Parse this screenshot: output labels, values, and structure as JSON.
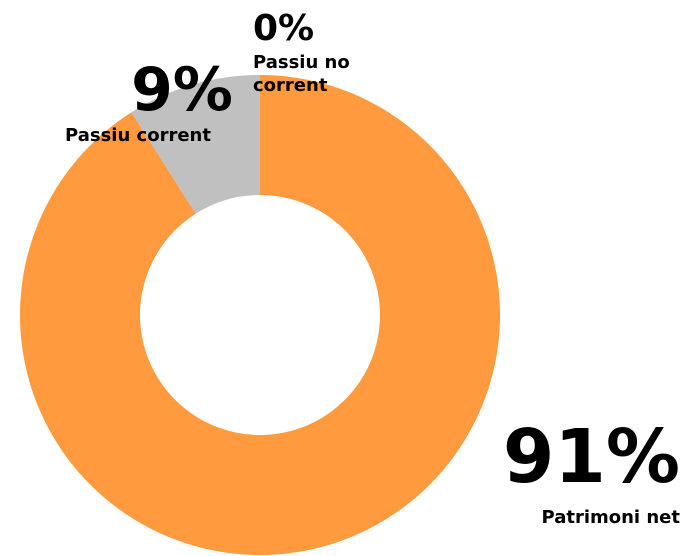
{
  "chart_data": {
    "type": "pie",
    "donut": true,
    "categories": [
      "Patrimoni net",
      "Passiu corrent",
      "Passiu no corrent"
    ],
    "values": [
      91,
      9,
      0
    ],
    "colors": [
      "#FF9A3E",
      "#C0C0C0",
      "#A5A5A5"
    ],
    "data_labels": [
      {
        "percent": "91%",
        "category": "Patrimoni net"
      },
      {
        "percent": "9%",
        "category": "Passiu corrent"
      },
      {
        "percent": "0%",
        "category_lines": [
          "Passiu no",
          "corrent"
        ]
      }
    ]
  }
}
